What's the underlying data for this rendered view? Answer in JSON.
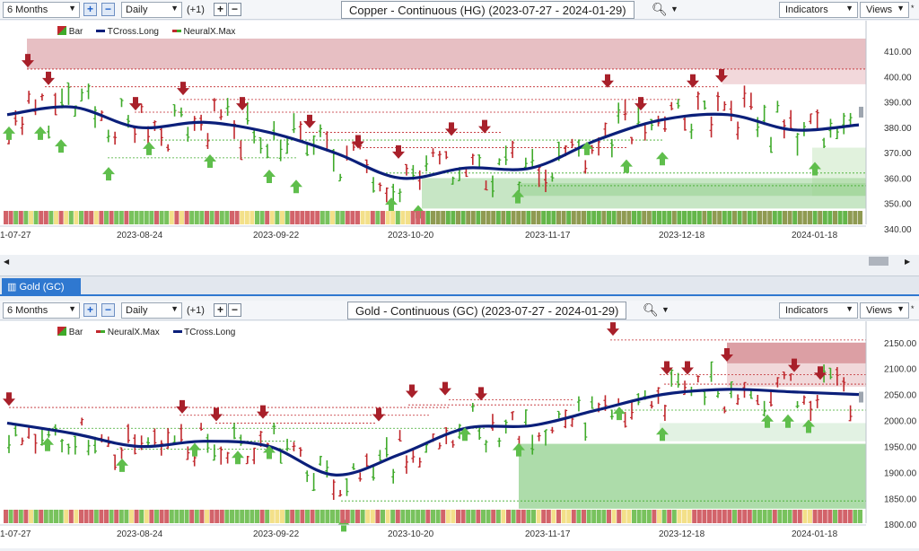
{
  "panel1": {
    "range": "6 Months",
    "interval": "Daily",
    "offset": "(+1)",
    "title": "Copper - Continuous (HG) (2023-07-27 - 2024-01-29)",
    "indicators_label": "Indicators",
    "views_label": "Views",
    "legend": [
      "Bar",
      "TCross.Long",
      "NeuralX.Max"
    ],
    "y_ticks": [
      "410.00",
      "400.00",
      "390.00",
      "380.00",
      "370.00",
      "360.00",
      "350.00",
      "340.00"
    ],
    "x_ticks": [
      "1-07-27",
      "2023-08-24",
      "2023-09-22",
      "2023-10-20",
      "2023-11-17",
      "2023-12-18",
      "2024-01-18"
    ]
  },
  "panel2": {
    "tab_label": "Gold (GC)",
    "range": "6 Months",
    "interval": "Daily",
    "offset": "(+1)",
    "title": "Gold - Continuous (GC) (2023-07-27 - 2024-01-29)",
    "indicators_label": "Indicators",
    "views_label": "Views",
    "legend": [
      "Bar",
      "NeuralX.Max",
      "TCross.Long"
    ],
    "y_ticks": [
      "2150.00",
      "2100.00",
      "2050.00",
      "2000.00",
      "1950.00",
      "1900.00",
      "1850.00",
      "1800.00"
    ],
    "x_ticks": [
      "1-07-27",
      "2023-08-24",
      "2023-09-22",
      "2023-10-20",
      "2023-11-17",
      "2023-12-18",
      "2024-01-18"
    ]
  },
  "colors": {
    "up": "#3faa2a",
    "down": "#c0282d",
    "ma": "#0b1f7a",
    "accent": "#2f78d0"
  },
  "chart_data": [
    {
      "type": "line",
      "title": "Copper - Continuous (HG) (2023-07-27 - 2024-01-29)",
      "ylim": [
        340,
        415
      ],
      "series": [
        {
          "name": "TCross.Long",
          "x": [
            "2023-07-27",
            "2023-08-10",
            "2023-08-24",
            "2023-09-08",
            "2023-09-22",
            "2023-10-06",
            "2023-10-20",
            "2023-11-03",
            "2023-11-17",
            "2023-12-01",
            "2023-12-18",
            "2024-01-02",
            "2024-01-18",
            "2024-01-29"
          ],
          "values": [
            385,
            388,
            380,
            382,
            378,
            370,
            360,
            364,
            364,
            375,
            383,
            385,
            379,
            381
          ]
        }
      ]
    },
    {
      "type": "line",
      "title": "Gold - Continuous (GC) (2023-07-27 - 2024-01-29)",
      "ylim": [
        1790,
        2160
      ],
      "series": [
        {
          "name": "TCross.Long",
          "x": [
            "2023-07-27",
            "2023-08-10",
            "2023-08-24",
            "2023-09-08",
            "2023-09-22",
            "2023-10-06",
            "2023-10-20",
            "2023-11-03",
            "2023-11-17",
            "2023-12-01",
            "2023-12-18",
            "2024-01-02",
            "2024-01-18",
            "2024-01-29"
          ],
          "values": [
            1995,
            1975,
            1950,
            1960,
            1950,
            1895,
            1935,
            1985,
            1990,
            2020,
            2050,
            2060,
            2055,
            2050
          ]
        }
      ]
    }
  ]
}
